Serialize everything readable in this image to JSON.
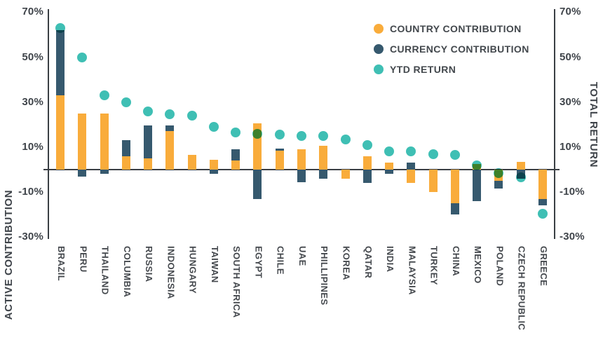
{
  "colors": {
    "country_bar": "#F9AC3B",
    "currency_bar": "#36596E",
    "ytd_dot": "#3FBFB4",
    "axis": "#3A3F44",
    "text": "#45494E",
    "background": "#FFFFFF"
  },
  "legend": {
    "items": [
      {
        "label": "COUNTRY CONTRIBUTION",
        "color": "#F9AC3B"
      },
      {
        "label": "CURRENCY CONTRIBUTION",
        "color": "#36596E"
      },
      {
        "label": "YTD RETURN",
        "color": "#3FBFB4"
      }
    ]
  },
  "chart_data": {
    "type": "bar",
    "subtype": "stacked-bars-with-scatter-overlay",
    "title": "",
    "categories": [
      "BRAZIL",
      "PERU",
      "THAILAND",
      "COLUMBIA",
      "RUSSIA",
      "INDONESIA",
      "HUNGARY",
      "TAIWAN",
      "SOUTH AFRICA",
      "EGYPT",
      "CHILE",
      "UAE",
      "PHILLIPINES",
      "KOREA",
      "QATAR",
      "INDIA",
      "MALAYSIA",
      "TURKEY",
      "CHINA",
      "MEXICO",
      "POLAND",
      "CZECH REPUBLIC",
      "GREECE"
    ],
    "series": [
      {
        "name": "COUNTRY CONTRIBUTION",
        "type": "bar",
        "color": "#F9AC3B",
        "values": [
          33,
          25,
          25,
          6,
          5,
          17,
          6.5,
          4.5,
          4,
          20.5,
          8.5,
          9,
          10.5,
          -4,
          6,
          3,
          -6,
          -10,
          -15,
          2.5,
          -5,
          3.5,
          -13
        ]
      },
      {
        "name": "CURRENCY CONTRIBUTION",
        "type": "bar",
        "stack_on_previous": true,
        "color": "#36596E",
        "values": [
          29,
          -3,
          -2,
          7,
          14.5,
          2.5,
          0,
          -2,
          5,
          -13,
          1,
          -5.5,
          -4,
          0,
          -6,
          -2,
          3,
          0,
          -5,
          -14,
          -3.5,
          -4,
          -3
        ]
      },
      {
        "name": "YTD RETURN",
        "type": "scatter",
        "color": "#3FBFB4",
        "values": [
          63,
          50,
          33,
          30,
          26,
          24.5,
          24,
          19,
          16.5,
          16,
          15.5,
          15,
          15,
          13.5,
          11,
          8,
          8,
          7,
          6.5,
          2,
          -1.5,
          -3.5,
          -19.5
        ]
      }
    ],
    "left_axis": {
      "label": "ACTIVE CONTRIBUTION",
      "tick_labels": [
        "70%",
        "50%",
        "30%",
        "10%",
        "-10%",
        "-30%"
      ],
      "tick_values": [
        70,
        50,
        30,
        10,
        -10,
        -30
      ],
      "range": [
        -31,
        71
      ]
    },
    "right_axis": {
      "label": "TOTAL RETURN",
      "tick_labels": [
        "70%",
        "50%",
        "30%",
        "10%",
        "-10%",
        "-30%"
      ],
      "tick_values": [
        70,
        50,
        30,
        10,
        -10,
        -30
      ],
      "range": [
        -31,
        71
      ]
    },
    "grid": false,
    "legend_position": "top-right",
    "unit": "%"
  }
}
